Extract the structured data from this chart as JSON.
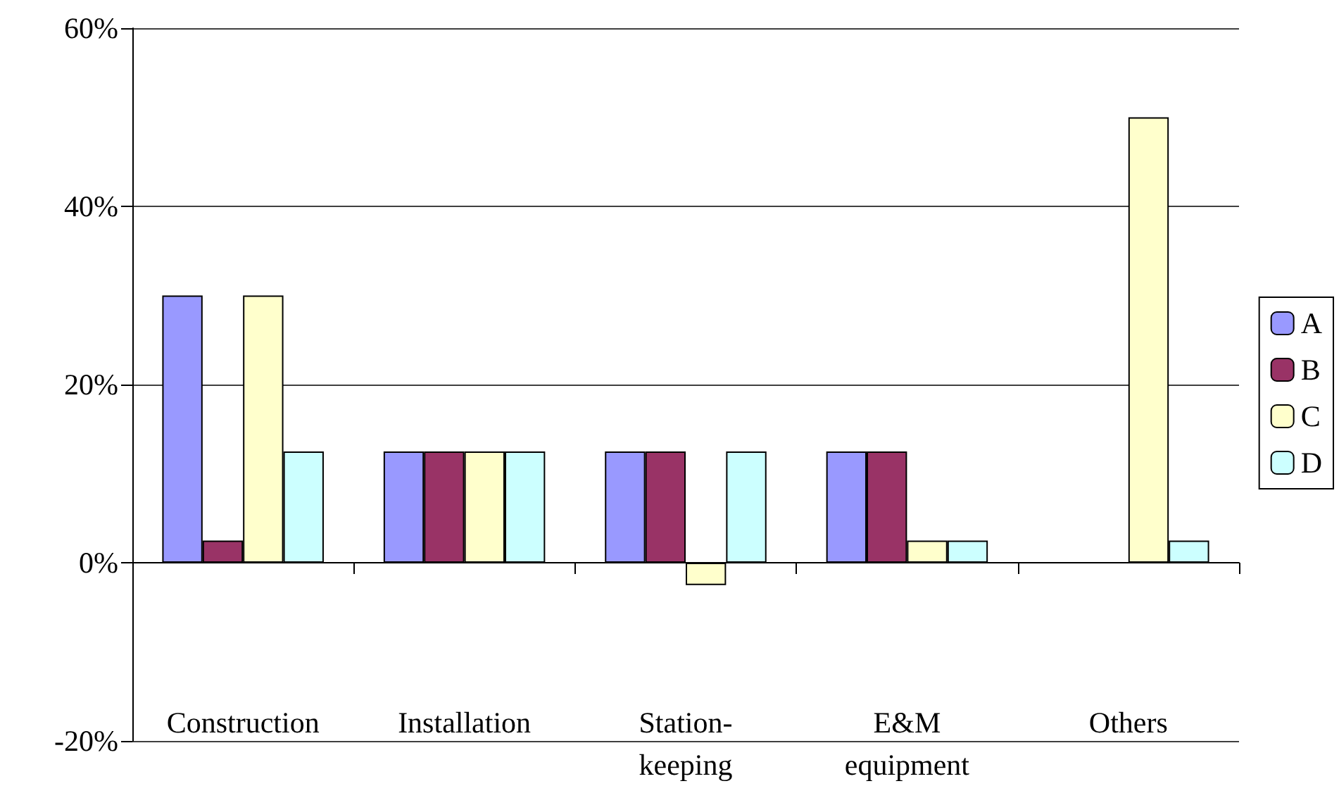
{
  "chart_data": {
    "type": "bar",
    "categories": [
      "Construction",
      "Installation",
      "Station-keeping",
      "E&M equipment",
      "Others"
    ],
    "series": [
      {
        "name": "A",
        "color": "#9999ff",
        "values": [
          30,
          12.5,
          12.5,
          12.5,
          null
        ]
      },
      {
        "name": "B",
        "color": "#993366",
        "values": [
          2.5,
          12.5,
          12.5,
          12.5,
          null
        ]
      },
      {
        "name": "C",
        "color": "#ffffcc",
        "values": [
          30,
          12.5,
          -2.5,
          2.5,
          50
        ]
      },
      {
        "name": "D",
        "color": "#ccffff",
        "values": [
          12.5,
          12.5,
          12.5,
          2.5,
          2.5
        ]
      }
    ],
    "ylim": [
      -20,
      60
    ],
    "yticks": [
      {
        "value": -20,
        "label": "-20%"
      },
      {
        "value": 0,
        "label": "0%"
      },
      {
        "value": 20,
        "label": "20%"
      },
      {
        "value": 40,
        "label": "40%"
      },
      {
        "value": 60,
        "label": "60%"
      }
    ],
    "grid": "y",
    "legend": "right"
  }
}
